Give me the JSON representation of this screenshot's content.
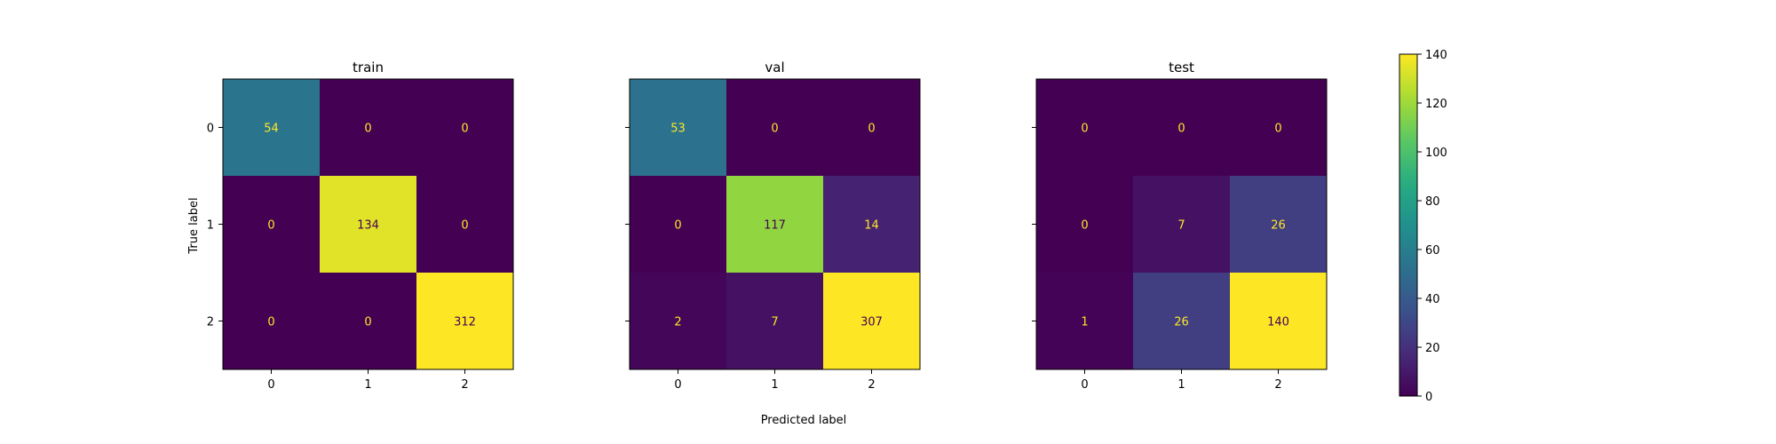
{
  "chart_data": {
    "type": "heatmap",
    "xlabel": "Predicted label",
    "ylabel": "True label",
    "colormap": "viridis",
    "panels": [
      {
        "title": "train",
        "categories_x": [
          "0",
          "1",
          "2"
        ],
        "categories_y": [
          "0",
          "1",
          "2"
        ],
        "matrix": [
          [
            54,
            0,
            0
          ],
          [
            0,
            134,
            0
          ],
          [
            0,
            0,
            312
          ]
        ]
      },
      {
        "title": "val",
        "categories_x": [
          "0",
          "1",
          "2"
        ],
        "categories_y": [
          "0",
          "1",
          "2"
        ],
        "matrix": [
          [
            53,
            0,
            0
          ],
          [
            0,
            117,
            14
          ],
          [
            2,
            7,
            307
          ]
        ]
      },
      {
        "title": "test",
        "categories_x": [
          "0",
          "1",
          "2"
        ],
        "categories_y": [
          "0",
          "1",
          "2"
        ],
        "matrix": [
          [
            0,
            0,
            0
          ],
          [
            0,
            7,
            26
          ],
          [
            1,
            26,
            140
          ]
        ]
      }
    ],
    "colorbar": {
      "range": [
        0,
        140
      ],
      "ticks": [
        0,
        20,
        40,
        60,
        80,
        100,
        120,
        140
      ]
    },
    "text_colors": {
      "light": "#fde725",
      "dark": "#440154"
    }
  }
}
